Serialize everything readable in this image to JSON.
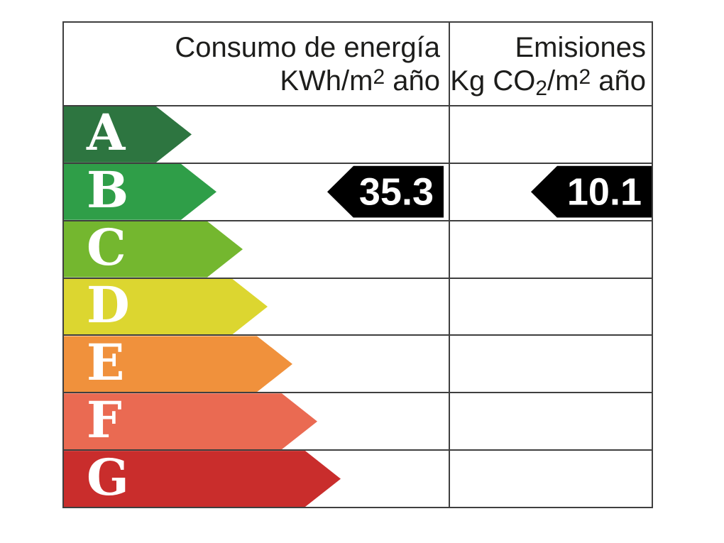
{
  "chart_data": {
    "type": "table",
    "columns": [
      "Consumo de energía KWh/m2 año",
      "Emisiones Kg CO2/m2 año"
    ],
    "categories": [
      "A",
      "B",
      "C",
      "D",
      "E",
      "F",
      "G"
    ],
    "rating": "B",
    "values": {
      "consumo_kwh_m2_ano": 35.3,
      "emisiones_kg_co2_m2_ano": 10.1
    },
    "rating_colors": [
      "#2d7540",
      "#2f9e48",
      "#74b72f",
      "#dcd630",
      "#f0913c",
      "#ea6a52",
      "#c92d2c"
    ],
    "layout": {
      "grid": "on",
      "value_arrow_row": "B",
      "value_arrow_color": "#000000"
    }
  },
  "header": {
    "consumption": {
      "title": "Consumo de energía",
      "unit_prefix": "KWh/m",
      "unit_sup": "2",
      "unit_suffix": " año"
    },
    "emissions": {
      "title": "Emisiones",
      "unit_prefix": "Kg CO",
      "unit_sub": "2",
      "unit_mid": "/m",
      "unit_sup": "2",
      "unit_suffix": " año"
    }
  },
  "ratings": [
    {
      "letter": "A",
      "color": "#2d7540"
    },
    {
      "letter": "B",
      "color": "#2f9e48"
    },
    {
      "letter": "C",
      "color": "#74b72f"
    },
    {
      "letter": "D",
      "color": "#dcd630"
    },
    {
      "letter": "E",
      "color": "#f0913c"
    },
    {
      "letter": "F",
      "color": "#ea6a52"
    },
    {
      "letter": "G",
      "color": "#c92d2c"
    }
  ],
  "values": {
    "consumption": "35.3",
    "emissions": "10.1",
    "arrow_color": "#000000"
  }
}
